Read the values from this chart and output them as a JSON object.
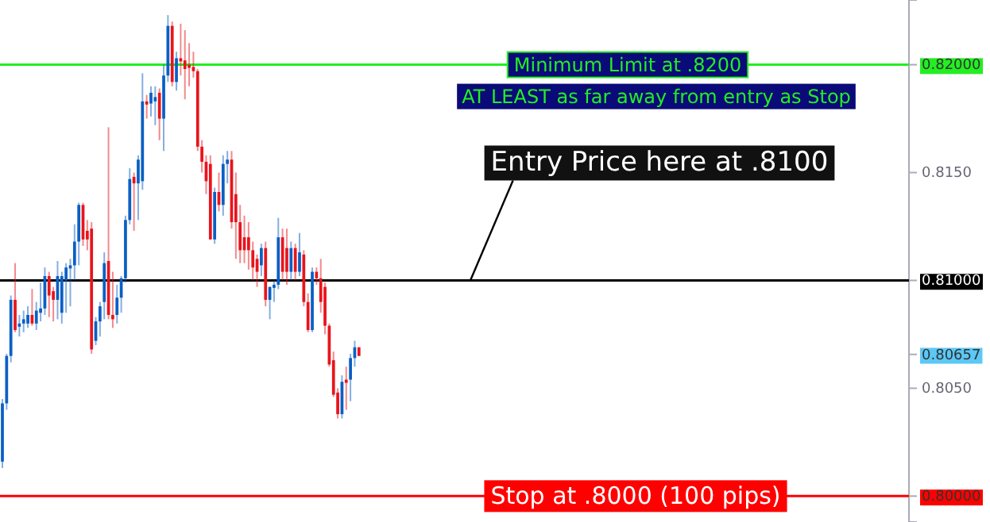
{
  "chart_data": {
    "type": "candlestick",
    "categories": [
      null,
      null,
      null,
      null,
      null,
      null,
      null,
      null,
      null,
      null,
      null,
      null,
      null,
      null,
      null,
      null,
      null,
      null,
      null,
      null,
      null,
      null,
      null,
      null,
      null,
      null,
      null,
      null,
      null,
      null,
      null,
      null,
      null,
      null,
      null,
      null,
      null,
      null,
      null,
      null,
      null,
      null,
      null,
      null,
      null,
      null,
      null,
      null,
      null,
      null,
      null,
      null,
      null,
      null,
      null,
      null,
      null,
      null,
      null,
      null,
      null,
      null,
      null,
      null,
      null,
      null,
      null,
      null,
      null,
      null,
      null,
      null,
      null,
      null,
      null,
      null,
      null,
      null,
      null,
      null,
      null,
      null,
      null,
      null,
      null,
      null,
      null,
      null,
      null,
      null,
      null,
      null,
      null,
      null,
      null,
      null,
      null,
      null,
      null,
      null,
      null,
      null,
      null,
      null,
      null,
      null,
      null,
      null,
      null,
      null,
      null,
      null,
      null,
      null,
      null,
      null,
      null,
      null,
      null,
      null,
      null,
      null,
      null,
      null,
      null,
      null,
      null,
      null,
      null,
      null,
      null,
      null,
      null,
      null,
      null,
      null,
      null,
      null,
      null,
      null,
      null,
      null,
      null,
      null,
      null,
      null,
      null,
      null,
      null,
      null,
      null,
      null,
      null,
      null,
      null,
      null,
      null,
      null,
      null,
      null,
      null,
      null,
      null,
      null,
      null,
      null,
      null,
      null,
      null,
      null,
      null,
      null,
      null,
      null,
      null,
      null,
      null,
      null,
      null,
      null,
      null,
      null,
      null,
      null,
      null,
      null,
      null,
      null,
      null,
      null,
      null,
      null,
      null,
      null,
      null,
      null,
      null,
      null,
      null,
      null,
      null,
      null,
      null,
      null,
      null,
      null,
      null,
      null,
      null,
      null,
      null,
      null,
      null,
      null
    ],
    "ohlc": [
      [
        0.8016,
        0.8045,
        0.8013,
        0.8043
      ],
      [
        0.8043,
        0.8066,
        0.804,
        0.8065
      ],
      [
        0.8065,
        0.8093,
        0.8062,
        0.8091
      ],
      [
        0.8091,
        0.8108,
        0.8076,
        0.8077
      ],
      [
        0.8079,
        0.8084,
        0.8074,
        0.808
      ],
      [
        0.808,
        0.8086,
        0.8076,
        0.8082
      ],
      [
        0.808,
        0.8088,
        0.8078,
        0.8084
      ],
      [
        0.8084,
        0.8096,
        0.8079,
        0.808
      ],
      [
        0.808,
        0.809,
        0.8077,
        0.8086
      ],
      [
        0.8085,
        0.8099,
        0.8081,
        0.8087
      ],
      [
        0.8087,
        0.8106,
        0.8084,
        0.8102
      ],
      [
        0.8102,
        0.8104,
        0.8083,
        0.8093
      ],
      [
        0.8095,
        0.8097,
        0.8081,
        0.8091
      ],
      [
        0.8091,
        0.8109,
        0.8082,
        0.8102
      ],
      [
        0.8085,
        0.8104,
        0.808,
        0.8102
      ],
      [
        0.81,
        0.8108,
        0.8085,
        0.8106
      ],
      [
        0.8106,
        0.811,
        0.8088,
        0.8107
      ],
      [
        0.8107,
        0.8126,
        0.81,
        0.8118
      ],
      [
        0.8118,
        0.8136,
        0.8107,
        0.8135
      ],
      [
        0.8135,
        0.8136,
        0.8116,
        0.8119
      ],
      [
        0.8123,
        0.8128,
        0.8114,
        0.8119
      ],
      [
        0.8124,
        0.8127,
        0.8066,
        0.8068
      ],
      [
        0.8072,
        0.8083,
        0.807,
        0.8081
      ],
      [
        0.8081,
        0.809,
        0.8074,
        0.8088
      ],
      [
        0.809,
        0.8113,
        0.8082,
        0.8108
      ],
      [
        0.8109,
        0.8171,
        0.8082,
        0.8084
      ],
      [
        0.8084,
        0.8104,
        0.8078,
        0.8082
      ],
      [
        0.8084,
        0.8098,
        0.808,
        0.8092
      ],
      [
        0.8092,
        0.8102,
        0.8085,
        0.8101
      ],
      [
        0.8101,
        0.813,
        0.8099,
        0.8128
      ],
      [
        0.8128,
        0.8152,
        0.8126,
        0.8147
      ],
      [
        0.8148,
        0.815,
        0.8123,
        0.8145
      ],
      [
        0.8145,
        0.8158,
        0.8128,
        0.8156
      ],
      [
        0.8146,
        0.8196,
        0.8142,
        0.8183
      ],
      [
        0.8183,
        0.8186,
        0.8175,
        0.8182
      ],
      [
        0.8182,
        0.819,
        0.8176,
        0.8187
      ],
      [
        0.8183,
        0.819,
        0.8172,
        0.8185
      ],
      [
        0.8187,
        0.8189,
        0.8165,
        0.8175
      ],
      [
        0.8175,
        0.82,
        0.816,
        0.8195
      ],
      [
        0.8195,
        0.8223,
        0.8192,
        0.8218
      ],
      [
        0.8218,
        0.822,
        0.819,
        0.8192
      ],
      [
        0.8192,
        0.8206,
        0.8188,
        0.8203
      ],
      [
        0.8203,
        0.8219,
        0.8195,
        0.8202
      ],
      [
        0.8202,
        0.8216,
        0.8184,
        0.8198
      ],
      [
        0.82,
        0.821,
        0.819,
        0.8199
      ],
      [
        0.8199,
        0.8206,
        0.8194,
        0.8197
      ],
      [
        0.8197,
        0.8198,
        0.816,
        0.8162
      ],
      [
        0.8162,
        0.8165,
        0.815,
        0.8155
      ],
      [
        0.8155,
        0.8158,
        0.814,
        0.8146
      ],
      [
        0.8154,
        0.8158,
        0.8119,
        0.8119
      ],
      [
        0.8119,
        0.8143,
        0.8117,
        0.8141
      ],
      [
        0.8141,
        0.815,
        0.8132,
        0.8135
      ],
      [
        0.8135,
        0.8158,
        0.813,
        0.8154
      ],
      [
        0.8154,
        0.816,
        0.8145,
        0.8156
      ],
      [
        0.8156,
        0.816,
        0.8124,
        0.8127
      ],
      [
        0.814,
        0.815,
        0.811,
        0.8127
      ],
      [
        0.8127,
        0.8135,
        0.8108,
        0.8114
      ],
      [
        0.812,
        0.813,
        0.8108,
        0.8114
      ],
      [
        0.812,
        0.8127,
        0.8105,
        0.8114
      ],
      [
        0.8114,
        0.8118,
        0.81,
        0.8106
      ],
      [
        0.811,
        0.8112,
        0.8097,
        0.8104
      ],
      [
        0.8107,
        0.8117,
        0.8102,
        0.8115
      ],
      [
        0.8115,
        0.8118,
        0.8088,
        0.8091
      ],
      [
        0.8091,
        0.8097,
        0.8082,
        0.8097
      ],
      [
        0.8097,
        0.81,
        0.809,
        0.8098
      ],
      [
        0.8098,
        0.8129,
        0.8096,
        0.812
      ],
      [
        0.812,
        0.8124,
        0.81,
        0.8104
      ],
      [
        0.8115,
        0.8124,
        0.8098,
        0.8104
      ],
      [
        0.8104,
        0.8118,
        0.81,
        0.8115
      ],
      [
        0.8115,
        0.8117,
        0.81,
        0.8104
      ],
      [
        0.8104,
        0.8122,
        0.8102,
        0.8113
      ],
      [
        0.8112,
        0.8114,
        0.8088,
        0.809
      ],
      [
        0.809,
        0.8094,
        0.8076,
        0.8077
      ],
      [
        0.8077,
        0.8106,
        0.8076,
        0.8104
      ],
      [
        0.8104,
        0.8106,
        0.8098,
        0.8101
      ],
      [
        0.8101,
        0.811,
        0.8085,
        0.809
      ],
      [
        0.8097,
        0.8099,
        0.8075,
        0.8079
      ],
      [
        0.8079,
        0.808,
        0.806,
        0.8061
      ],
      [
        0.8063,
        0.8067,
        0.8046,
        0.8047
      ],
      [
        0.8048,
        0.805,
        0.8036,
        0.8038
      ],
      [
        0.8038,
        0.8056,
        0.8036,
        0.8053
      ],
      [
        0.8054,
        0.806,
        0.804,
        0.8053
      ],
      [
        0.8054,
        0.8066,
        0.8044,
        0.8064
      ],
      [
        0.8064,
        0.8072,
        0.806,
        0.8069
      ],
      [
        0.8069,
        0.8069,
        0.8065,
        0.8065
      ],
      null,
      null,
      null,
      null,
      null,
      null,
      null,
      null,
      null,
      null,
      null,
      null,
      null,
      null,
      null,
      null,
      null,
      null,
      null,
      null,
      null,
      null,
      null,
      null,
      null,
      null,
      null,
      null,
      null,
      null,
      null,
      null,
      null,
      null,
      null,
      null,
      null,
      null,
      null,
      null,
      null,
      null,
      null,
      null,
      null,
      null,
      null,
      null,
      null,
      null,
      null,
      null,
      null,
      null,
      null,
      null,
      null,
      null,
      null,
      null,
      null,
      null,
      null,
      null,
      null,
      null,
      null,
      null,
      null,
      null,
      null,
      null,
      null,
      null,
      null,
      null,
      null,
      null,
      null,
      null,
      null,
      null,
      null,
      null,
      null,
      null,
      null,
      null,
      null,
      null,
      null,
      null,
      null,
      null,
      null,
      null,
      null,
      null,
      null,
      null,
      null,
      null,
      null,
      null,
      null,
      null,
      null,
      null,
      null,
      null,
      null,
      null,
      null,
      null,
      null,
      null,
      null,
      null,
      null,
      null,
      null,
      null,
      null,
      null,
      null,
      null,
      null,
      null,
      null
    ],
    "ylim": [
      0.7988,
      0.823
    ],
    "yticks": [
      {
        "value": 0.82,
        "label": "0.82000"
      },
      {
        "value": 0.815,
        "label": "0.8150"
      },
      {
        "value": 0.81,
        "label": "0.81000"
      },
      {
        "value": 0.80657,
        "label": "0.80657"
      },
      {
        "value": 0.805,
        "label": "0.8050"
      },
      {
        "value": 0.8,
        "label": "0.80000"
      }
    ],
    "tick_labels": "y",
    "ref_lines": [
      {
        "axis": "y",
        "value": 0.82,
        "label": "Minimum Limit at .8200",
        "color": "#22ee22"
      },
      {
        "axis": "y",
        "value": 0.81,
        "label": "Entry Price here at .8100",
        "color": "#000000"
      },
      {
        "axis": "y",
        "value": 0.8,
        "label": "Stop at .8000 (100 pips)",
        "color": "#ff0000"
      }
    ],
    "annotations": [
      "AT LEAST as far away from entry as Stop"
    ]
  }
}
